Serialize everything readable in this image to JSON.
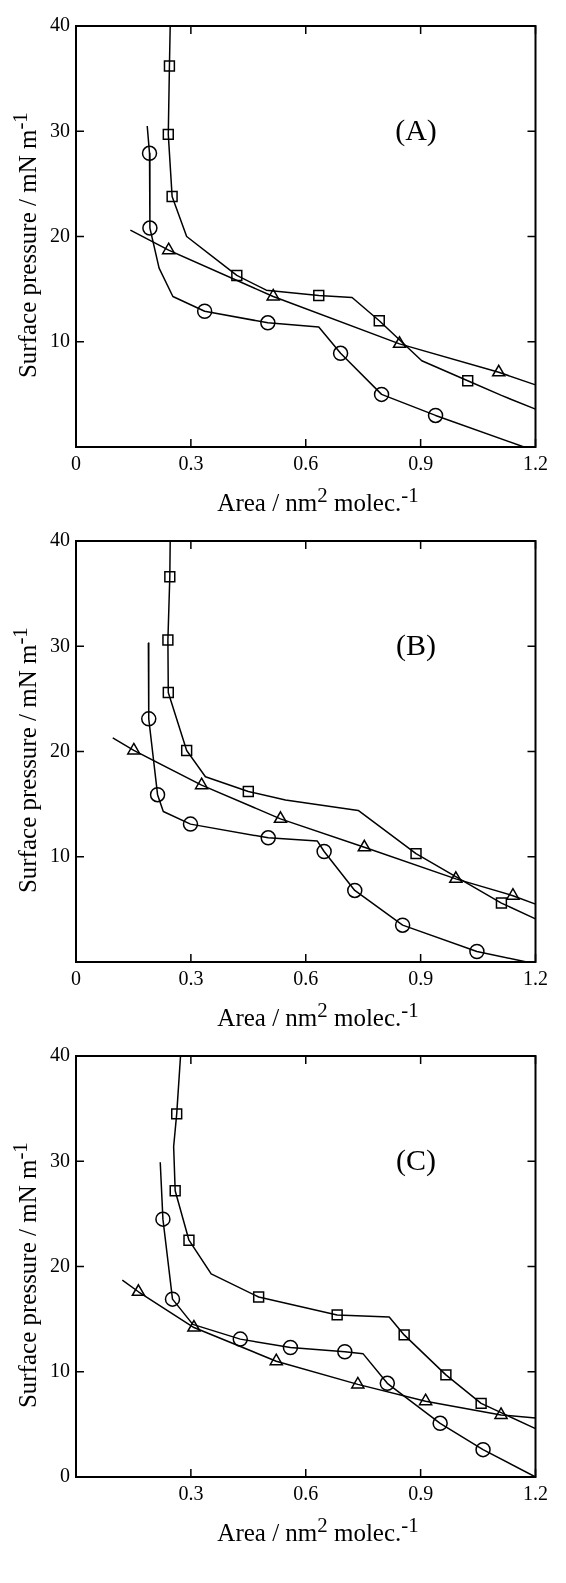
{
  "chart_data": [
    {
      "type": "line",
      "xlabel": "Area / nm$^{2}$ molec.$^{-1}$",
      "ylabel": "Surface pressure / mN m$^{-1}$",
      "annotations": [
        "(A)"
      ],
      "xlim": [
        0,
        1.2
      ],
      "ylim": [
        0,
        40
      ],
      "xticks": [
        0,
        0.3,
        0.6,
        0.9,
        1.2
      ],
      "yticks": [
        10,
        20,
        30,
        40
      ],
      "line_style": "solid",
      "series": [
        {
          "type": "line",
          "marker": "none",
          "color": "#000000",
          "x": [
            0.246,
            0.244,
            0.241,
            0.251,
            0.289,
            0.42,
            0.497,
            0.634,
            0.721,
            0.792,
            0.903,
            1.023,
            1.111,
            1.2
          ],
          "values": [
            40,
            36.2,
            29.7,
            23.8,
            20.0,
            16.3,
            14.9,
            14.4,
            14.2,
            12.0,
            8.2,
            6.3,
            4.9,
            3.6
          ]
        },
        {
          "type": "line",
          "marker": "none",
          "color": "#000000",
          "x": [
            0.186,
            0.192,
            0.193,
            0.217,
            0.253,
            0.336,
            0.501,
            0.634,
            0.691,
            0.798,
            0.939,
            1.17
          ],
          "values": [
            30.5,
            27.9,
            20.8,
            17.0,
            14.3,
            12.9,
            11.8,
            11.4,
            8.9,
            5.0,
            3.0,
            0
          ]
        },
        {
          "type": "line",
          "marker": "none",
          "color": "#000000",
          "x": [
            0.142,
            0.242,
            0.515,
            0.845,
            1.104,
            1.2
          ],
          "values": [
            20.6,
            18.7,
            14.3,
            9.8,
            7.1,
            5.9
          ]
        },
        {
          "type": "scatter",
          "marker": "square",
          "color": "#000000",
          "x": [
            0.244,
            0.241,
            0.251,
            0.42,
            0.634,
            0.792,
            1.023
          ],
          "values": [
            36.2,
            29.7,
            23.8,
            16.3,
            14.4,
            12.0,
            6.3
          ]
        },
        {
          "type": "scatter",
          "marker": "circle",
          "color": "#000000",
          "x": [
            0.192,
            0.193,
            0.336,
            0.501,
            0.691,
            0.798,
            0.939
          ],
          "values": [
            27.9,
            20.8,
            12.9,
            11.8,
            8.9,
            5.0,
            3.0
          ]
        },
        {
          "type": "scatter",
          "marker": "triangle",
          "color": "#000000",
          "x": [
            0.242,
            0.515,
            0.845,
            1.104
          ],
          "values": [
            18.7,
            14.3,
            9.8,
            7.1
          ]
        }
      ]
    },
    {
      "type": "line",
      "xlabel": "Area / nm$^{2}$ molec.$^{-1}$",
      "ylabel": "Surface pressure / mN m$^{-1}$",
      "annotations": [
        "(B)"
      ],
      "xlim": [
        0,
        1.2
      ],
      "ylim": [
        0,
        40
      ],
      "xticks": [
        0,
        0.3,
        0.6,
        0.9,
        1.2
      ],
      "yticks": [
        10,
        20,
        30,
        40
      ],
      "line_style": "solid",
      "series": [
        {
          "type": "line",
          "marker": "none",
          "color": "#000000",
          "x": [
            0.246,
            0.245,
            0.24,
            0.241,
            0.289,
            0.338,
            0.45,
            0.547,
            0.737,
            0.888,
            1.111,
            1.2
          ],
          "values": [
            40,
            36.6,
            30.6,
            25.6,
            20.1,
            17.6,
            16.2,
            15.4,
            14.4,
            10.3,
            5.6,
            4.1
          ]
        },
        {
          "type": "line",
          "marker": "none",
          "color": "#000000",
          "x": [
            0.189,
            0.19,
            0.213,
            0.228,
            0.299,
            0.502,
            0.63,
            0.648,
            0.728,
            0.853,
            1.047,
            1.177
          ],
          "values": [
            30.3,
            23.1,
            15.9,
            14.3,
            13.1,
            11.8,
            11.5,
            10.5,
            6.8,
            3.5,
            1.0,
            0
          ]
        },
        {
          "type": "line",
          "marker": "none",
          "color": "#000000",
          "x": [
            0.096,
            0.151,
            0.328,
            0.534,
            0.753,
            0.992,
            1.141,
            1.2
          ],
          "values": [
            21.3,
            20.1,
            16.8,
            13.6,
            10.9,
            7.9,
            6.3,
            5.5
          ]
        },
        {
          "type": "scatter",
          "marker": "square",
          "color": "#000000",
          "x": [
            0.245,
            0.24,
            0.241,
            0.289,
            0.45,
            0.888,
            1.111
          ],
          "values": [
            36.6,
            30.6,
            25.6,
            20.1,
            16.2,
            10.3,
            5.6
          ]
        },
        {
          "type": "scatter",
          "marker": "circle",
          "color": "#000000",
          "x": [
            0.19,
            0.213,
            0.299,
            0.502,
            0.648,
            0.728,
            0.853,
            1.047
          ],
          "values": [
            23.1,
            15.9,
            13.1,
            11.8,
            10.5,
            6.8,
            3.5,
            1.0
          ]
        },
        {
          "type": "scatter",
          "marker": "triangle",
          "color": "#000000",
          "x": [
            0.151,
            0.328,
            0.534,
            0.753,
            0.992,
            1.141
          ],
          "values": [
            20.1,
            16.8,
            13.6,
            10.9,
            7.9,
            6.3
          ]
        }
      ]
    },
    {
      "type": "line",
      "xlabel": "Area / nm$^{2}$ molec.$^{-1}$",
      "ylabel": "Surface pressure / mN m$^{-1}$",
      "annotations": [
        "(C)"
      ],
      "xlim": [
        0,
        1.2
      ],
      "ylim": [
        0,
        40
      ],
      "xticks": [
        0.3,
        0.6,
        0.9,
        1.2
      ],
      "yticks": [
        0,
        10,
        20,
        30,
        40
      ],
      "line_style": "solid",
      "series": [
        {
          "type": "line",
          "marker": "none",
          "color": "#000000",
          "x": [
            0.273,
            0.263,
            0.255,
            0.259,
            0.295,
            0.353,
            0.477,
            0.682,
            0.818,
            0.857,
            0.966,
            1.058,
            1.2
          ],
          "values": [
            40,
            34.5,
            31.4,
            27.2,
            22.5,
            19.3,
            17.1,
            15.4,
            15.2,
            13.5,
            9.7,
            7.0,
            4.6
          ]
        },
        {
          "type": "line",
          "marker": "none",
          "color": "#000000",
          "x": [
            0.22,
            0.227,
            0.252,
            0.305,
            0.429,
            0.56,
            0.702,
            0.75,
            0.813,
            0.951,
            1.063,
            1.2
          ],
          "values": [
            29.9,
            24.5,
            16.9,
            14.5,
            13.1,
            12.3,
            11.9,
            11.7,
            8.9,
            5.1,
            2.6,
            0
          ]
        },
        {
          "type": "line",
          "marker": "none",
          "color": "#000000",
          "x": [
            0.121,
            0.163,
            0.308,
            0.523,
            0.736,
            0.913,
            1.11,
            1.2
          ],
          "values": [
            18.7,
            17.6,
            14.2,
            11.0,
            8.8,
            7.2,
            5.9,
            5.6
          ]
        },
        {
          "type": "scatter",
          "marker": "square",
          "color": "#000000",
          "x": [
            0.263,
            0.259,
            0.295,
            0.477,
            0.682,
            0.857,
            0.966,
            1.058
          ],
          "values": [
            34.5,
            27.2,
            22.5,
            17.1,
            15.4,
            13.5,
            9.7,
            7.0
          ]
        },
        {
          "type": "scatter",
          "marker": "circle",
          "color": "#000000",
          "x": [
            0.227,
            0.252,
            0.429,
            0.56,
            0.702,
            0.813,
            0.951,
            1.063
          ],
          "values": [
            24.5,
            16.9,
            13.1,
            12.3,
            11.9,
            8.9,
            5.1,
            2.6
          ]
        },
        {
          "type": "scatter",
          "marker": "triangle",
          "color": "#000000",
          "x": [
            0.163,
            0.308,
            0.523,
            0.736,
            0.913,
            1.11
          ],
          "values": [
            17.6,
            14.2,
            11.0,
            8.8,
            7.2,
            5.9
          ]
        }
      ]
    }
  ]
}
